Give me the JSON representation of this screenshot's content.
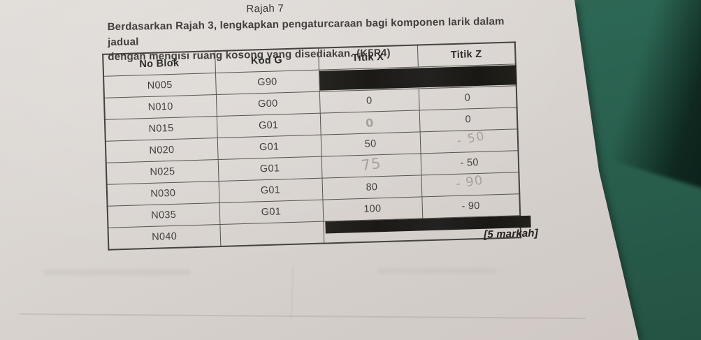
{
  "page": {
    "figure_label": "Rajah 7",
    "instruction_line1": "Berdasarkan Rajah 3, lengkapkan pengaturcaraan bagi komponen larik dalam jadual",
    "instruction_line2": "dengan mengisi ruang kosong yang disediakan. (K5P4)",
    "marks_label": "[5 markah]"
  },
  "colors": {
    "desk_green": "#2c6553",
    "desk_edge_dark": "#0a1f19",
    "paper": "#d9d4d0",
    "ink": "#3c3a38",
    "pencil_gray": "#a8a09a",
    "redaction_black": "#1d1c1a"
  },
  "table": {
    "headers": [
      "No Blok",
      "Kod G",
      "Titik X",
      "Titik Z"
    ],
    "rows": [
      {
        "no_blok": "N005",
        "kod_g": "G90",
        "redacted_xz": true
      },
      {
        "no_blok": "N010",
        "kod_g": "G00",
        "titik_x": {
          "text": "0",
          "kind": "printed"
        },
        "titik_z": {
          "text": "0",
          "kind": "printed"
        }
      },
      {
        "no_blok": "N015",
        "kod_g": "G01",
        "titik_x": {
          "text": "0",
          "kind": "handwritten"
        },
        "titik_z": {
          "text": "0",
          "kind": "printed"
        }
      },
      {
        "no_blok": "N020",
        "kod_g": "G01",
        "titik_x": {
          "text": "50",
          "kind": "printed"
        },
        "titik_z": {
          "text": "- 50",
          "kind": "handwritten"
        }
      },
      {
        "no_blok": "N025",
        "kod_g": "G01",
        "titik_x": {
          "text": "75",
          "kind": "handwritten"
        },
        "titik_z": {
          "text": "- 50",
          "kind": "printed"
        }
      },
      {
        "no_blok": "N030",
        "kod_g": "G01",
        "titik_x": {
          "text": "80",
          "kind": "printed"
        },
        "titik_z": {
          "text": "- 90",
          "kind": "handwritten"
        }
      },
      {
        "no_blok": "N035",
        "kod_g": "G01",
        "titik_x": {
          "text": "100",
          "kind": "printed"
        },
        "titik_z": {
          "text": "- 90",
          "kind": "printed"
        }
      },
      {
        "no_blok": "N040",
        "kod_g": "",
        "redacted_xz": true,
        "marks": true
      }
    ]
  }
}
